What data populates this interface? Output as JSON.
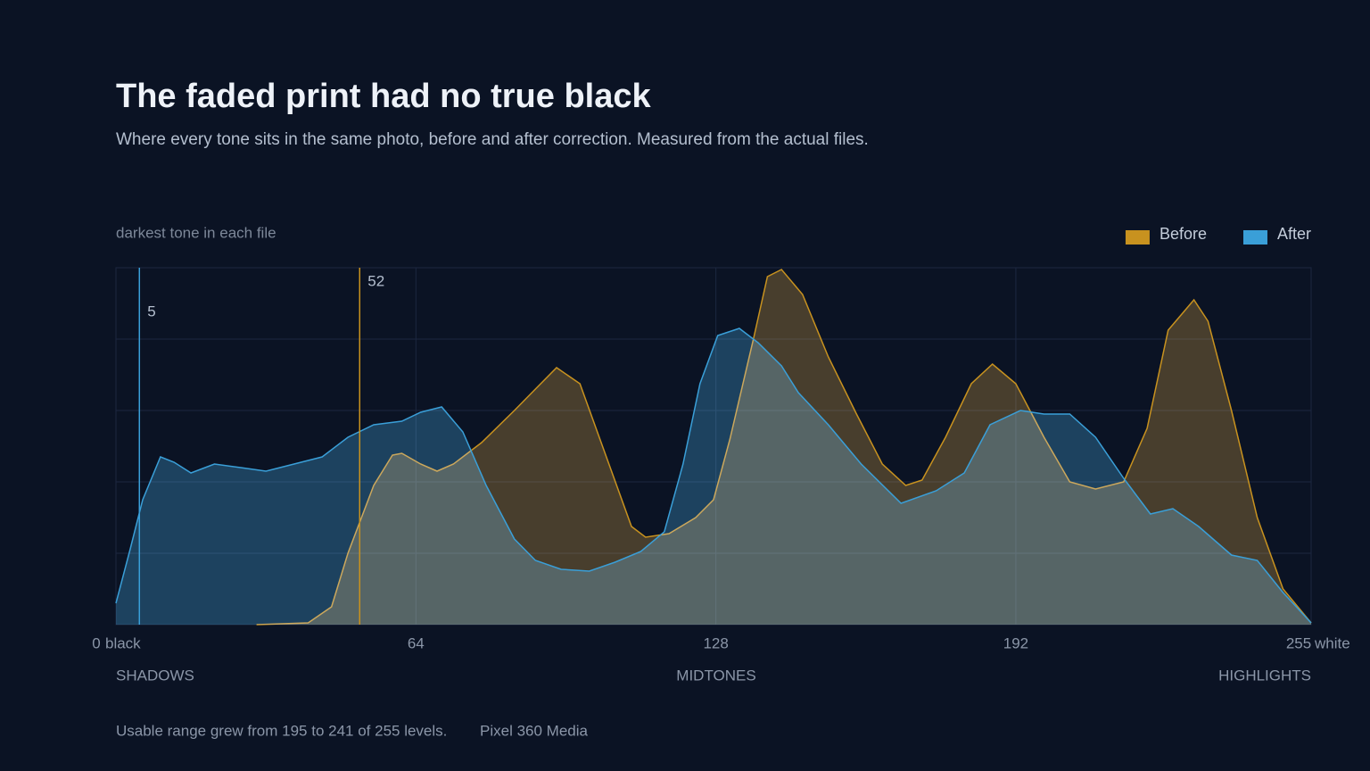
{
  "chart_data": {
    "type": "area",
    "title": "The faded print had no true black",
    "subtitle": "Where every tone sits in the same photo, before and after correction. Measured from the actual files.",
    "annotation_title": "darkest tone in each file",
    "xlim": [
      0,
      255
    ],
    "xticks": [
      0,
      64,
      128,
      192,
      255
    ],
    "xlabel_left": "black",
    "xlabel_right": "white",
    "ylim": [
      0,
      100
    ],
    "yticks": [
      0,
      20,
      40,
      60,
      80,
      100
    ],
    "grid": true,
    "zones": [
      "SHADOWS",
      "MIDTONES",
      "HIGHLIGHTS"
    ],
    "legend": "top-right",
    "series": [
      {
        "name": "Before",
        "color": "#c8921f",
        "x": [
          30,
          41,
          46,
          49.5,
          55,
          59,
          61,
          65,
          68.5,
          72,
          78,
          85,
          89.5,
          94,
          99,
          104.5,
          110,
          113,
          118,
          123.7,
          127.5,
          131,
          136,
          139,
          142,
          146.5,
          152,
          158,
          163.5,
          168.5,
          172,
          177,
          182.5,
          187,
          192,
          198,
          203.5,
          209,
          215,
          220,
          224.5,
          230,
          233,
          238,
          243.5,
          249,
          255
        ],
        "values": [
          0,
          0.5,
          5,
          20,
          39,
          47.5,
          48,
          45,
          43,
          45,
          51,
          60,
          66,
          72,
          67.5,
          47.5,
          27.5,
          24.5,
          25.5,
          30,
          35,
          52,
          80,
          97.5,
          99.5,
          92.5,
          75,
          59,
          45,
          39,
          40.5,
          52.5,
          67.5,
          73,
          67.5,
          52.5,
          40,
          38,
          40,
          55,
          82.5,
          91,
          85,
          60,
          30,
          10,
          0.5
        ]
      },
      {
        "name": "After",
        "color": "#3a9fd8",
        "x": [
          0,
          3,
          5.7,
          9.5,
          12.4,
          16,
          21,
          26.6,
          32,
          38,
          44,
          49.5,
          55,
          61,
          65,
          69.5,
          74,
          79,
          85,
          89.5,
          95,
          101,
          106.5,
          112,
          117,
          121,
          124.6,
          128.4,
          133,
          137,
          142,
          145.6,
          152,
          159,
          167.5,
          175,
          181,
          186.5,
          193,
          198,
          203.5,
          209,
          215,
          220.7,
          225.5,
          231,
          238,
          243.5,
          249,
          255
        ],
        "values": [
          6,
          21,
          35,
          47,
          45.5,
          42.5,
          45,
          44,
          43,
          45,
          47,
          52.5,
          56,
          57,
          59.5,
          61,
          54,
          39,
          24,
          18,
          15.5,
          15,
          17.5,
          20.5,
          26,
          45,
          67.5,
          81,
          83,
          79,
          72.5,
          65,
          56,
          45,
          34,
          37.5,
          42.5,
          56,
          60,
          59,
          59,
          52.5,
          41,
          31,
          32.5,
          27.5,
          19.5,
          18,
          9,
          0.5
        ]
      }
    ],
    "annotations": [
      {
        "value": 5,
        "color": "#3a9fd8"
      },
      {
        "value": 52,
        "color": "#c8921f"
      }
    ],
    "footer": "Usable range grew from 195 to 241 of 255 levels.",
    "source": "Pixel 360 Media"
  }
}
